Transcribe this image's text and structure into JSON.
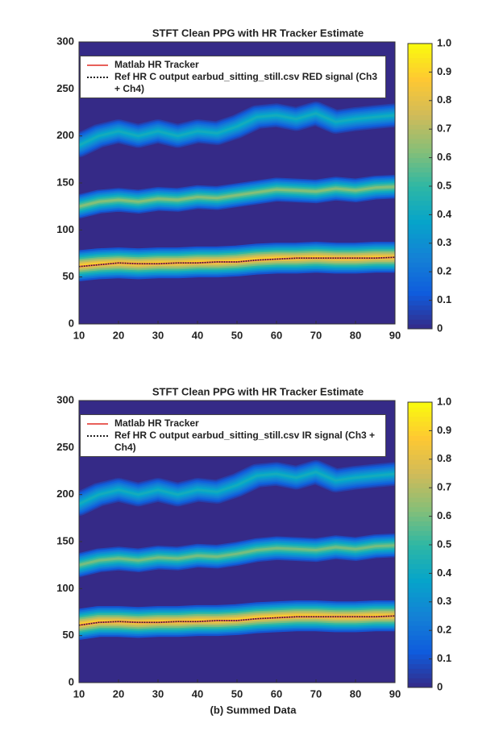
{
  "chart_data": [
    {
      "type": "heatmap",
      "title": "STFT Clean PPG with HR Tracker Estimate",
      "colormap": "parula",
      "x": [
        10,
        15,
        20,
        25,
        30,
        35,
        40,
        45,
        50,
        55,
        60,
        65,
        70,
        75,
        80,
        85,
        90
      ],
      "ridges": [
        {
          "level": 0.9,
          "values": [
            62,
            64,
            65,
            64,
            65,
            65,
            66,
            66,
            67,
            69,
            70,
            70,
            71,
            70,
            70,
            71,
            71
          ]
        },
        {
          "level": 0.62,
          "values": [
            125,
            130,
            132,
            130,
            133,
            132,
            135,
            134,
            137,
            140,
            143,
            142,
            141,
            144,
            142,
            145,
            146
          ]
        },
        {
          "level": 0.42,
          "values": [
            190,
            200,
            205,
            200,
            205,
            200,
            205,
            203,
            210,
            220,
            222,
            218,
            224,
            215,
            218,
            220,
            222
          ]
        }
      ],
      "series": [
        {
          "name": "Matlab HR Tracker",
          "color": "#e8605a",
          "values": [
            61,
            63,
            65,
            64,
            64,
            65,
            65,
            66,
            66,
            68,
            69,
            70,
            70,
            70,
            70,
            70,
            71
          ]
        },
        {
          "name": "Ref HR C output earbud_sitting_still.csv RED signal (Ch3 + Ch4)",
          "color": "#222222",
          "values": [
            61,
            63,
            65,
            64,
            64,
            65,
            65,
            66,
            66,
            68,
            69,
            70,
            70,
            70,
            70,
            70,
            71
          ]
        }
      ],
      "xlim": [
        10,
        90
      ],
      "xticks": [
        10,
        20,
        30,
        40,
        50,
        60,
        70,
        80,
        90
      ],
      "ylim": [
        0,
        300
      ],
      "yticks": [
        0,
        50,
        100,
        150,
        200,
        250,
        300
      ],
      "clim": [
        0,
        1
      ],
      "cticks": [
        0,
        0.1,
        0.2,
        0.3,
        0.4,
        0.5,
        0.6,
        0.7,
        0.8,
        0.9,
        {
          "value": 1,
          "label": "1.0"
        }
      ]
    },
    {
      "type": "heatmap",
      "title": "STFT Clean PPG with HR Tracker Estimate",
      "colormap": "parula",
      "x": [
        10,
        15,
        20,
        25,
        30,
        35,
        40,
        45,
        50,
        55,
        60,
        65,
        70,
        75,
        80,
        85,
        90
      ],
      "ridges": [
        {
          "level": 0.9,
          "values": [
            62,
            65,
            65,
            64,
            65,
            65,
            66,
            66,
            67,
            69,
            70,
            71,
            71,
            70,
            70,
            71,
            71
          ]
        },
        {
          "level": 0.6,
          "values": [
            125,
            130,
            132,
            130,
            133,
            132,
            135,
            134,
            137,
            141,
            143,
            142,
            141,
            144,
            142,
            145,
            146
          ]
        },
        {
          "level": 0.42,
          "values": [
            190,
            200,
            205,
            200,
            205,
            200,
            205,
            203,
            210,
            220,
            222,
            218,
            224,
            215,
            218,
            220,
            222
          ]
        }
      ],
      "series": [
        {
          "name": "Matlab HR Tracker",
          "color": "#e8605a",
          "values": [
            61,
            64,
            65,
            64,
            64,
            65,
            65,
            66,
            66,
            68,
            69,
            70,
            70,
            70,
            70,
            70,
            71
          ]
        },
        {
          "name": "Ref HR C output earbud_sitting_still.csv IR signal (Ch3 + Ch4)",
          "color": "#222222",
          "values": [
            61,
            64,
            65,
            64,
            64,
            65,
            65,
            66,
            66,
            68,
            69,
            70,
            70,
            70,
            70,
            70,
            71
          ]
        }
      ],
      "xlim": [
        10,
        90
      ],
      "xticks": [
        10,
        20,
        30,
        40,
        50,
        60,
        70,
        80,
        90
      ],
      "ylim": [
        0,
        300
      ],
      "yticks": [
        0,
        50,
        100,
        150,
        200,
        250,
        300
      ],
      "clim": [
        0,
        1
      ],
      "cticks": [
        0,
        0.1,
        0.2,
        0.3,
        0.4,
        0.5,
        0.6,
        0.7,
        0.8,
        0.9,
        {
          "value": 1,
          "label": "1.0"
        }
      ]
    }
  ],
  "caption": "(b) Summed Data"
}
